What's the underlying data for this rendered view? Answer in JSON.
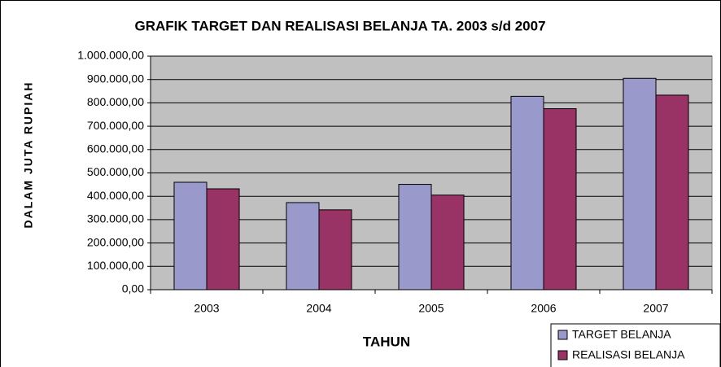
{
  "chart_data": {
    "type": "bar",
    "title": "GRAFIK TARGET DAN REALISASI BELANJA TA. 2003 s/d 2007",
    "x_label": "TAHUN",
    "y_label": "DALAM JUTA RUPIAH",
    "categories": [
      "2003",
      "2004",
      "2005",
      "2006",
      "2007"
    ],
    "series": [
      {
        "name": "TARGET BELANJA",
        "color": "#9999cc",
        "values": [
          460000,
          373000,
          451000,
          828000,
          905000
        ]
      },
      {
        "name": "REALISASI BELANJA",
        "color": "#993366",
        "values": [
          432000,
          342000,
          405000,
          775000,
          833000
        ]
      }
    ],
    "ylim": [
      0,
      1000000
    ],
    "yticks": [
      {
        "value": 0,
        "label": "0,00"
      },
      {
        "value": 100000,
        "label": "100.000,00"
      },
      {
        "value": 200000,
        "label": "200.000,00"
      },
      {
        "value": 300000,
        "label": "300.000,00"
      },
      {
        "value": 400000,
        "label": "400.000,00"
      },
      {
        "value": 500000,
        "label": "500.000,00"
      },
      {
        "value": 600000,
        "label": "600.000,00"
      },
      {
        "value": 700000,
        "label": "700.000,00"
      },
      {
        "value": 800000,
        "label": "800.000,00"
      },
      {
        "value": 900000,
        "label": "900.000,00"
      },
      {
        "value": 1000000,
        "label": "1.000.000,00"
      }
    ],
    "grid": true,
    "legend": "bottom-right"
  }
}
